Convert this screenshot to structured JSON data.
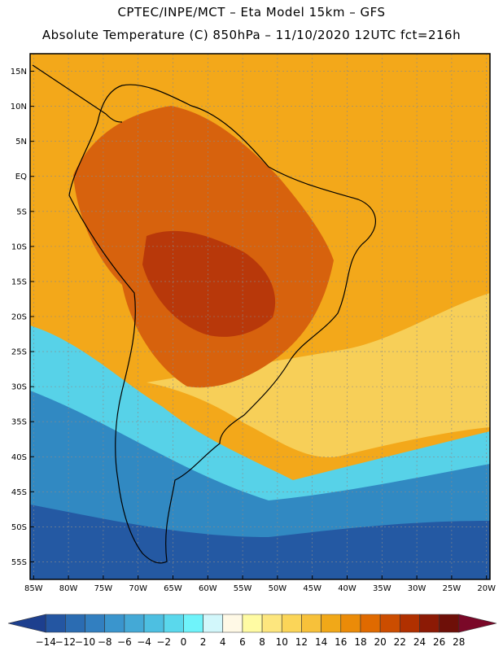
{
  "header": {
    "line1": "CPTEC/INPE/MCT –  Eta Model 15km – GFS",
    "line2": "Absolute Temperature (C) 850hPa – 11/10/2020 12UTC fct=216h"
  },
  "map": {
    "lat_labels": [
      "15N",
      "10N",
      "5N",
      "EQ",
      "5S",
      "10S",
      "15S",
      "20S",
      "25S",
      "30S",
      "35S",
      "40S",
      "45S",
      "50S",
      "55S"
    ],
    "lat_values": [
      15,
      10,
      5,
      0,
      -5,
      -10,
      -15,
      -20,
      -25,
      -30,
      -35,
      -40,
      -45,
      -50,
      -55
    ],
    "lon_labels": [
      "85W",
      "80W",
      "75W",
      "70W",
      "65W",
      "60W",
      "55W",
      "50W",
      "45W",
      "40W",
      "35W",
      "30W",
      "25W",
      "20W"
    ],
    "lon_values": [
      -85,
      -80,
      -75,
      -70,
      -65,
      -60,
      -55,
      -50,
      -45,
      -40,
      -35,
      -30,
      -25,
      -20
    ],
    "lat_range": [
      -57.5,
      17.5
    ],
    "lon_range": [
      -85.5,
      -19.5
    ]
  },
  "colorbar": {
    "labels": [
      "-14",
      "-12",
      "-10",
      "-8",
      "-6",
      "-4",
      "-2",
      "0",
      "2",
      "4",
      "6",
      "8",
      "10",
      "12",
      "14",
      "16",
      "18",
      "20",
      "22",
      "24",
      "26",
      "28"
    ],
    "colors": [
      "#1d3f8e",
      "#2456a2",
      "#2b6cb2",
      "#327fc0",
      "#3a95cd",
      "#44a9d6",
      "#4dbfe1",
      "#5ad8ec",
      "#6ff3fa",
      "#d2f7fb",
      "#fff9e6",
      "#fffba3",
      "#fde67e",
      "#fbd558",
      "#f7c13a",
      "#f1a818",
      "#eb8b08",
      "#e06a00",
      "#cc4d00",
      "#b03000",
      "#8c1a05",
      "#6e0f08",
      "#7a0828"
    ]
  },
  "regions": {
    "atlantic_north": "#f3a81a",
    "warm_interior": "#d7620d",
    "hot_core": "#b8380a",
    "south_yellow": "#f7cf58",
    "cold_cyan": "#57d2e8",
    "cold_blue": "#3189c2",
    "deep_blue": "#2459a3"
  }
}
